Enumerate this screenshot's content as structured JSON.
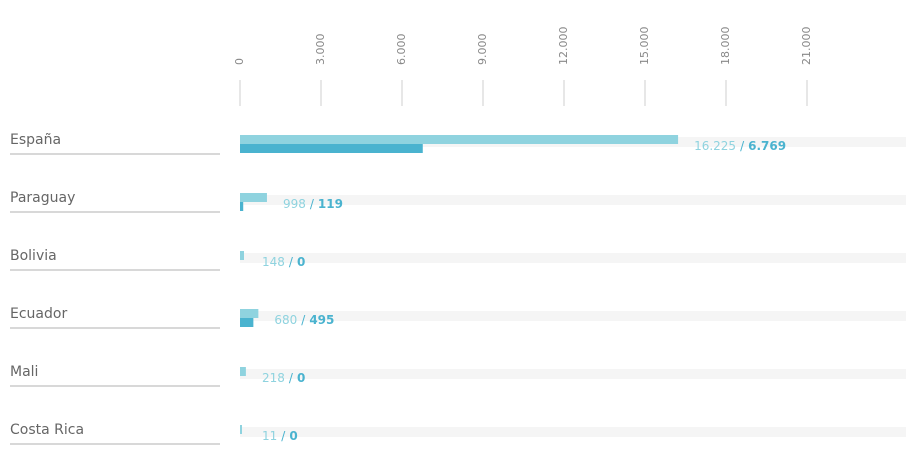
{
  "chart_data": {
    "type": "bar",
    "orientation": "horizontal",
    "categories": [
      "España",
      "Paraguay",
      "Bolivia",
      "Ecuador",
      "Mali",
      "Costa Rica"
    ],
    "series": [
      {
        "color": "#8fd3df",
        "values": [
          16225,
          998,
          148,
          680,
          218,
          11
        ],
        "value_labels": [
          "16.225",
          "998",
          "148",
          "680",
          "218",
          "11"
        ]
      },
      {
        "color": "#4ab3cf",
        "values": [
          6769,
          119,
          0,
          495,
          0,
          0
        ],
        "value_labels": [
          "6.769",
          "119",
          "0",
          "495",
          "0",
          "0"
        ]
      }
    ],
    "separator": "/",
    "xlim": [
      0,
      24000
    ],
    "xticks": [
      0,
      {
        "value": 3000,
        "label": "3.000"
      },
      {
        "value": 6000,
        "label": "6.000"
      },
      {
        "value": 9000,
        "label": "9.000"
      },
      {
        "value": 12000,
        "label": "12.000"
      },
      {
        "value": 15000,
        "label": "15.000"
      },
      {
        "value": 18000,
        "label": "18.000"
      },
      {
        "value": 21000,
        "label": "21.000"
      }
    ]
  }
}
